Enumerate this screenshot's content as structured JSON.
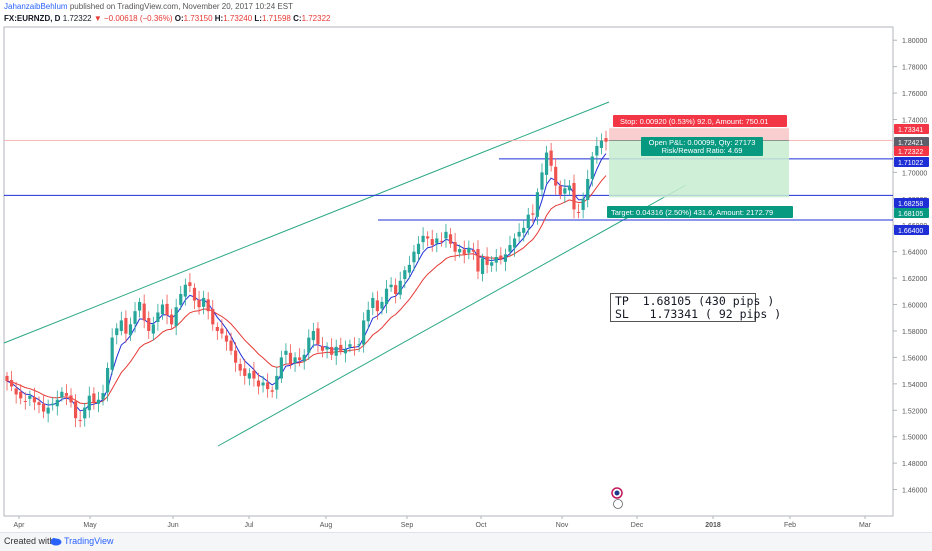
{
  "header": {
    "author": "JahanzaibBehlum",
    "published": "published on TradingView.com, November 20, 2017 10:24 EST",
    "symbol": "FX:EURNZD, D",
    "last": "1.72322",
    "change": "−0.00618 (−0.36%)",
    "o_label": "O:",
    "o": "1.73150",
    "h_label": "H:",
    "h": "1.73240",
    "l_label": "L:",
    "l": "1.71598",
    "c_label": "C:",
    "c": "1.72322"
  },
  "footer": {
    "created": "Created with",
    "brand": "TradingView"
  },
  "note": {
    "tp": "TP  1.68105 (430 pips )",
    "sl": "SL   1.73341 ( 92 pips )"
  },
  "colors": {
    "bull": "#26a69a",
    "bear": "#ef5350",
    "ema_fast": "#1e2fd6",
    "ema_slow": "#e53935",
    "channel": "#2ba884",
    "hline": "#1e2fd6",
    "stop": "#f23645",
    "target": "#089981"
  },
  "chart_data": {
    "type": "candlestick",
    "symbol": "FX:EURNZD",
    "timeframe": "D",
    "ylim": [
      1.44,
      1.81
    ],
    "x_ticks": [
      "Apr",
      "May",
      "Jun",
      "Jul",
      "Aug",
      "Sep",
      "Oct",
      "Nov",
      "Dec",
      "2018",
      "Feb",
      "Mar"
    ],
    "y_ticks": [
      "1.46000",
      "1.48000",
      "1.50000",
      "1.52000",
      "1.54000",
      "1.56000",
      "1.58000",
      "1.60000",
      "1.62000",
      "1.64000",
      "1.66000",
      "1.68000",
      "1.70000",
      "1.72000",
      "1.74000",
      "1.76000",
      "1.78000",
      "1.80000"
    ],
    "price_tags": [
      {
        "value": 1.73341,
        "label": "1.73341",
        "kind": "stop"
      },
      {
        "value": 1.72421,
        "label": "1.72421",
        "kind": "last"
      },
      {
        "value": 1.72322,
        "label": "1.72322",
        "kind": "close"
      },
      {
        "value": 1.71022,
        "label": "1.71022",
        "kind": "level"
      },
      {
        "value": 1.68258,
        "label": "1.68258",
        "kind": "level"
      },
      {
        "value": 1.68105,
        "label": "1.68105",
        "kind": "target"
      },
      {
        "value": 1.664,
        "label": "1.66400",
        "kind": "level"
      }
    ],
    "levels": [
      1.71022,
      1.68258,
      1.664
    ],
    "position": {
      "entry": 1.72421,
      "stop": 1.73341,
      "target": 1.68105,
      "stop_text": "Stop: 0.00920 (0.53%) 92.0, Amount: 750.01",
      "pnl_text": "Open P&L: 0.00099, Qty: 27173",
      "ratio_text": "Risk/Reward Ratio: 4.69",
      "target_text": "Target: 0.04316 (2.50%) 431.6, Amount: 2172.79"
    },
    "close_path": [
      1.542,
      1.538,
      1.532,
      1.529,
      1.527,
      1.531,
      1.526,
      1.524,
      1.519,
      1.522,
      1.525,
      1.528,
      1.534,
      1.531,
      1.526,
      1.514,
      1.512,
      1.522,
      1.531,
      1.526,
      1.528,
      1.533,
      1.552,
      1.575,
      1.582,
      1.588,
      1.578,
      1.585,
      1.595,
      1.602,
      1.588,
      1.58,
      1.585,
      1.594,
      1.6,
      1.592,
      1.585,
      1.598,
      1.608,
      1.615,
      1.614,
      1.603,
      1.598,
      1.605,
      1.595,
      1.585,
      1.58,
      1.578,
      1.572,
      1.565,
      1.556,
      1.55,
      1.546,
      1.548,
      1.544,
      1.538,
      1.541,
      1.536,
      1.534,
      1.546,
      1.56,
      1.565,
      1.555,
      1.56,
      1.558,
      1.562,
      1.575,
      1.58,
      1.57,
      1.565,
      1.568,
      1.562,
      1.568,
      1.565,
      1.566,
      1.57,
      1.568,
      1.57,
      1.588,
      1.596,
      1.605,
      1.595,
      1.602,
      1.612,
      1.615,
      1.608,
      1.618,
      1.626,
      1.63,
      1.64,
      1.646,
      1.652,
      1.65,
      1.645,
      1.65,
      1.648,
      1.655,
      1.646,
      1.64,
      1.642,
      1.638,
      1.643,
      1.64,
      1.625,
      1.635,
      1.63,
      1.632,
      1.636,
      1.634,
      1.638,
      1.645,
      1.65,
      1.655,
      1.658,
      1.668,
      1.668,
      1.685,
      1.7,
      1.715,
      1.705,
      1.69,
      1.683,
      1.688,
      1.69,
      1.672,
      1.67,
      1.68,
      1.695,
      1.712,
      1.72,
      1.724,
      1.72322
    ]
  }
}
